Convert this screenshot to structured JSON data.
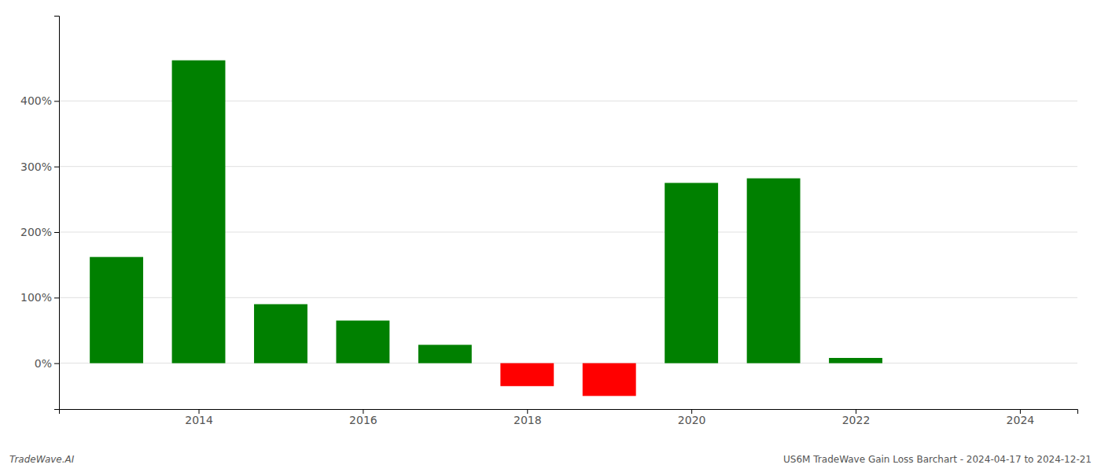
{
  "chart_data": {
    "type": "bar",
    "x": [
      2013,
      2014,
      2015,
      2016,
      2017,
      2018,
      2019,
      2020,
      2021,
      2022,
      2023
    ],
    "values": [
      1.62,
      4.62,
      0.9,
      0.65,
      0.28,
      -0.35,
      -0.5,
      2.75,
      2.82,
      0.08,
      0.0
    ],
    "colors": [
      "#008000",
      "#008000",
      "#008000",
      "#008000",
      "#008000",
      "#ff0000",
      "#ff0000",
      "#008000",
      "#008000",
      "#008000",
      "#008000"
    ],
    "xlim": [
      2012.3,
      2024.7
    ],
    "xticks": [
      2014,
      2016,
      2018,
      2020,
      2022,
      2024
    ],
    "ylim": [
      -0.7,
      5.3
    ],
    "yticks": [
      {
        "value": 0.0,
        "label": "0%"
      },
      {
        "value": 1.0,
        "label": "100%"
      },
      {
        "value": 2.0,
        "label": "200%"
      },
      {
        "value": 3.0,
        "label": "300%"
      },
      {
        "value": 4.0,
        "label": "400%"
      }
    ],
    "grid": true,
    "annotations": [
      "TradeWave.AI",
      "US6M TradeWave Gain Loss Barchart - 2024-04-17 to 2024-12-21"
    ]
  }
}
